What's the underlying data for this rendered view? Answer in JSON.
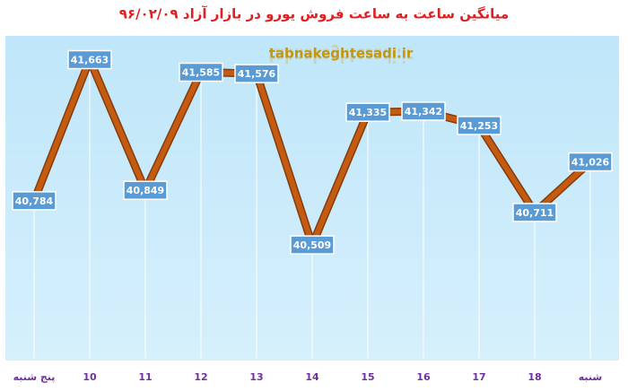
{
  "chart_data": {
    "type": "line",
    "title": "میانگین ساعت به ساعت فروش یورو در بازار آزاد ۹۶/۰۲/۰۹",
    "annotation": "tabnakeghtesadi.ir",
    "categories": [
      "پنج شنبه",
      "10",
      "11",
      "12",
      "13",
      "14",
      "15",
      "16",
      "17",
      "18",
      "شنبه"
    ],
    "values": [
      40784,
      41663,
      40849,
      41585,
      41576,
      40509,
      41335,
      41342,
      41253,
      40711,
      41026
    ],
    "value_labels": [
      "40,784",
      "41,663",
      "40,849",
      "41,585",
      "41,576",
      "40,509",
      "41,335",
      "41,342",
      "41,253",
      "40,711",
      "41,026"
    ],
    "color": "#c55a11",
    "ylim": [
      39800,
      41800
    ]
  }
}
